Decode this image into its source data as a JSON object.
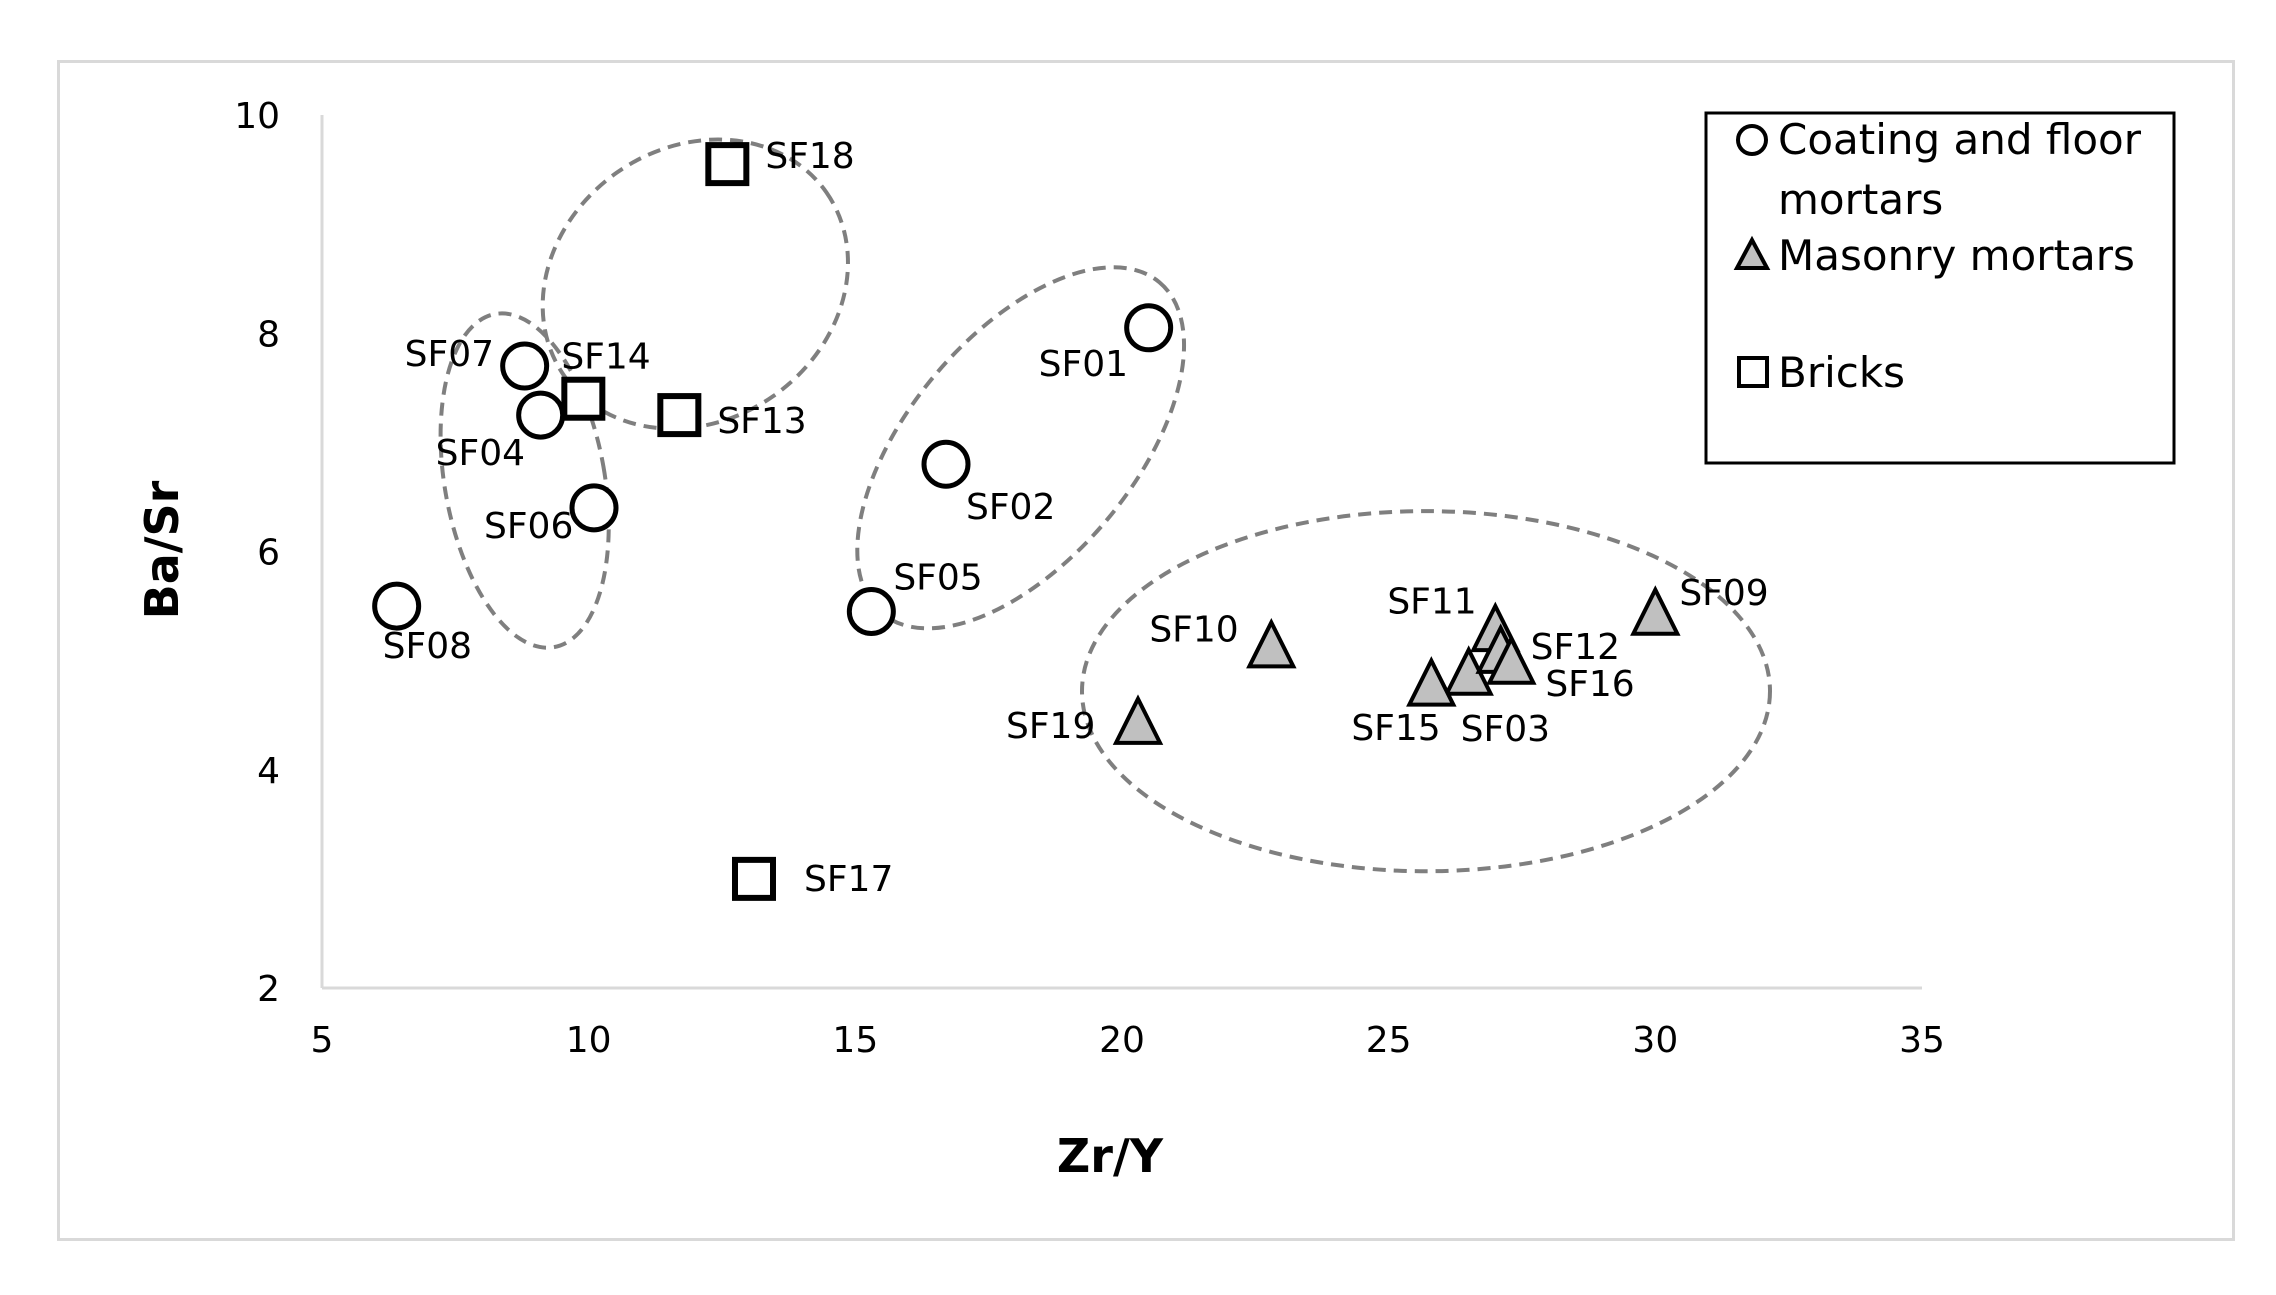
{
  "chart_data": {
    "type": "scatter",
    "xlabel": "Zr/Y",
    "ylabel": "Ba/Sr",
    "xlim": [
      5,
      35
    ],
    "ylim": [
      2,
      10
    ],
    "xticks": [
      5,
      10,
      15,
      20,
      25,
      30,
      35
    ],
    "yticks": [
      2,
      4,
      6,
      8,
      10
    ],
    "grid": false,
    "legend_position": "top-right",
    "series": [
      {
        "name": "Coating and floor mortars",
        "marker": "circle",
        "fill": "#ffffff",
        "points": [
          {
            "label": "SF01",
            "x": 20.5,
            "y": 8.05
          },
          {
            "label": "SF02",
            "x": 16.7,
            "y": 6.8
          },
          {
            "label": "SF04",
            "x": 9.1,
            "y": 7.25
          },
          {
            "label": "SF05",
            "x": 15.3,
            "y": 5.45
          },
          {
            "label": "SF06",
            "x": 10.1,
            "y": 6.4
          },
          {
            "label": "SF07",
            "x": 8.8,
            "y": 7.7
          },
          {
            "label": "SF08",
            "x": 6.4,
            "y": 5.5
          }
        ]
      },
      {
        "name": "Masonry mortars",
        "marker": "triangle",
        "fill": "#c0c0c0",
        "points": [
          {
            "label": "SF03",
            "x": 26.5,
            "y": 4.85
          },
          {
            "label": "SF09",
            "x": 30.0,
            "y": 5.4
          },
          {
            "label": "SF10",
            "x": 22.8,
            "y": 5.1
          },
          {
            "label": "SF11",
            "x": 27.0,
            "y": 5.25
          },
          {
            "label": "SF12",
            "x": 27.1,
            "y": 5.05
          },
          {
            "label": "SF15",
            "x": 25.8,
            "y": 4.75
          },
          {
            "label": "SF16",
            "x": 27.3,
            "y": 4.95
          },
          {
            "label": "SF19",
            "x": 20.3,
            "y": 4.4
          }
        ]
      },
      {
        "name": "Bricks",
        "marker": "square",
        "fill": "#ffffff",
        "points": [
          {
            "label": "SF13",
            "x": 11.7,
            "y": 7.25
          },
          {
            "label": "SF14",
            "x": 9.9,
            "y": 7.4
          },
          {
            "label": "SF17",
            "x": 13.1,
            "y": 3.0
          },
          {
            "label": "SF18",
            "x": 12.6,
            "y": 9.55
          }
        ]
      }
    ],
    "groups": [
      {
        "shape": "ellipse",
        "cx": 8.8,
        "cy": 6.65,
        "rx": 1.5,
        "ry": 1.55,
        "angle": -10
      },
      {
        "shape": "ellipse",
        "cx": 12.0,
        "cy": 8.45,
        "rx": 3.0,
        "ry": 1.25,
        "angle": -35
      },
      {
        "shape": "ellipse",
        "cx": 18.1,
        "cy": 6.95,
        "rx": 4.05,
        "ry": 1.03,
        "angle": -50
      },
      {
        "shape": "ellipse",
        "cx": 25.7,
        "cy": 4.72,
        "rx": 6.45,
        "ry": 1.65,
        "angle": 0
      }
    ],
    "colors": {
      "marker_stroke": "#000000",
      "group_outline": "#7f7f7f",
      "frame": "#d9d9d9",
      "axis": "#d9d9d9"
    }
  }
}
